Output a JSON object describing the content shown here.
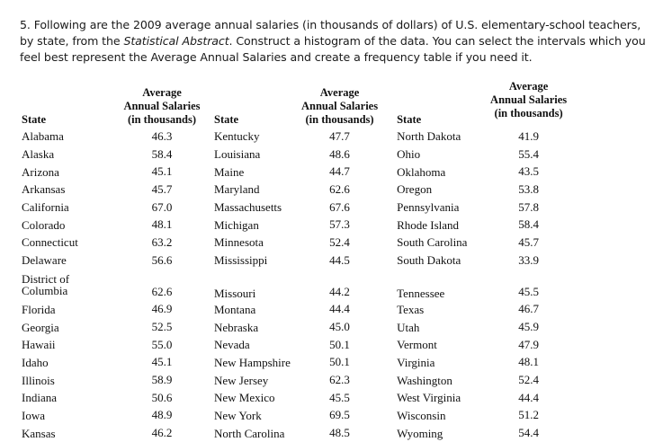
{
  "prompt": {
    "part1": "5. Following are the 2009 average annual salaries (in thousands of dollars) of U.S. elementary-school teachers, by state, from the ",
    "source": "Statistical Abstract",
    "part2": ".  Construct a histogram of the data.  You can select the intervals which you feel best represent the Average Annual Salaries and create a frequency table if you need it."
  },
  "table": {
    "state_header": "State",
    "value_header": [
      "Average",
      "Annual Salaries",
      "(in thousands)"
    ],
    "rows": [
      [
        [
          "Alabama",
          "46.3"
        ],
        [
          "Kentucky",
          "47.7"
        ],
        [
          "North Dakota",
          "41.9"
        ]
      ],
      [
        [
          "Alaska",
          "58.4"
        ],
        [
          "Louisiana",
          "48.6"
        ],
        [
          "Ohio",
          "55.4"
        ]
      ],
      [
        [
          "Arizona",
          "45.1"
        ],
        [
          "Maine",
          "44.7"
        ],
        [
          "Oklahoma",
          "43.5"
        ]
      ],
      [
        [
          "Arkansas",
          "45.7"
        ],
        [
          "Maryland",
          "62.6"
        ],
        [
          "Oregon",
          "53.8"
        ]
      ],
      [
        [
          "California",
          "67.0"
        ],
        [
          "Massachusetts",
          "67.6"
        ],
        [
          "Pennsylvania",
          "57.8"
        ]
      ],
      [
        [
          "Colorado",
          "48.1"
        ],
        [
          "Michigan",
          "57.3"
        ],
        [
          "Rhode Island",
          "58.4"
        ]
      ],
      [
        [
          "Connecticut",
          "63.2"
        ],
        [
          "Minnesota",
          "52.4"
        ],
        [
          "South Carolina",
          "45.7"
        ]
      ],
      [
        [
          "Delaware",
          "56.6"
        ],
        [
          "Mississippi",
          "44.5"
        ],
        [
          "South Dakota",
          "33.9"
        ]
      ],
      [
        [
          "District of Columbia",
          "62.6"
        ],
        [
          "Missouri",
          "44.2"
        ],
        [
          "Tennessee",
          "45.5"
        ]
      ],
      [
        [
          "Florida",
          "46.9"
        ],
        [
          "Montana",
          "44.4"
        ],
        [
          "Texas",
          "46.7"
        ]
      ],
      [
        [
          "Georgia",
          "52.5"
        ],
        [
          "Nebraska",
          "45.0"
        ],
        [
          "Utah",
          "45.9"
        ]
      ],
      [
        [
          "Hawaii",
          "55.0"
        ],
        [
          "Nevada",
          "50.1"
        ],
        [
          "Vermont",
          "47.9"
        ]
      ],
      [
        [
          "Idaho",
          "45.1"
        ],
        [
          "New Hampshire",
          "50.1"
        ],
        [
          "Virginia",
          "48.1"
        ]
      ],
      [
        [
          "Illinois",
          "58.9"
        ],
        [
          "New Jersey",
          "62.3"
        ],
        [
          "Washington",
          "52.4"
        ]
      ],
      [
        [
          "Indiana",
          "50.6"
        ],
        [
          "New Mexico",
          "45.5"
        ],
        [
          "West Virginia",
          "44.4"
        ]
      ],
      [
        [
          "Iowa",
          "48.9"
        ],
        [
          "New York",
          "69.5"
        ],
        [
          "Wisconsin",
          "51.2"
        ]
      ],
      [
        [
          "Kansas",
          "46.2"
        ],
        [
          "North Carolina",
          "48.5"
        ],
        [
          "Wyoming",
          "54.4"
        ]
      ]
    ]
  }
}
